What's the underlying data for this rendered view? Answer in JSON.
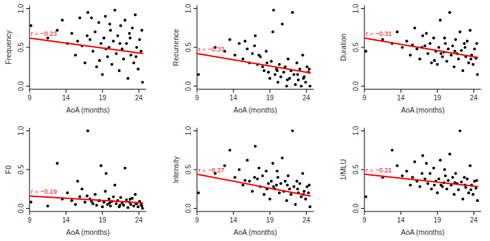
{
  "chart_data": [
    {
      "type": "scatter",
      "x_label": "AoA (months)",
      "y_label": "Frequency",
      "annotation": "r = −0.23",
      "xlim": [
        9,
        25
      ],
      "xticks": [
        9,
        14,
        19,
        24
      ],
      "ylim": [
        -0.04,
        1.04
      ],
      "yticks": [
        {
          "value": 0,
          "label": "0.0"
        },
        {
          "value": 0.5,
          "label": "0.5"
        },
        {
          "value": 1,
          "label": "1.0"
        }
      ],
      "series": [
        {
          "type": "scatter",
          "color": "#000000",
          "marker": "circle",
          "x": [
            9.2,
            11.5,
            12.8,
            13.5,
            14.2,
            14.8,
            15.3,
            15.9,
            16.2,
            16.6,
            17.0,
            17.3,
            17.7,
            18.0,
            18.2,
            18.5,
            18.8,
            19.0,
            19.2,
            19.4,
            19.7,
            19.9,
            20.1,
            20.3,
            20.5,
            20.7,
            20.9,
            21.1,
            21.3,
            21.5,
            21.7,
            21.9,
            22.1,
            22.3,
            22.5,
            22.7,
            22.9,
            23.1,
            23.3,
            23.5,
            23.7,
            23.9,
            24.1,
            24.3,
            24.5,
            16.9,
            18.6,
            20.0,
            21.4,
            22.8,
            23.6,
            24.4,
            19.5,
            17.5,
            15.6
          ],
          "values": [
            0.78,
            0.62,
            0.72,
            0.85,
            0.55,
            0.68,
            0.4,
            0.88,
            0.52,
            0.3,
            0.95,
            0.6,
            0.45,
            0.7,
            0.25,
            0.82,
            0.55,
            0.15,
            0.62,
            0.9,
            0.38,
            0.5,
            0.72,
            0.28,
            0.58,
            0.98,
            0.42,
            0.65,
            0.2,
            0.78,
            0.48,
            0.35,
            0.85,
            0.55,
            0.1,
            0.68,
            0.4,
            0.75,
            0.3,
            0.92,
            0.5,
            0.22,
            0.6,
            0.45,
            0.05,
            0.65,
            0.33,
            0.8,
            0.55,
            0.62,
            0.38,
            0.72,
            0.48,
            0.88,
            0.58
          ]
        },
        {
          "type": "line",
          "color": "#ff0000",
          "line_style": "solid",
          "x": [
            9,
            24.6
          ],
          "values": [
            0.62,
            0.42
          ]
        }
      ]
    },
    {
      "type": "scatter",
      "x_label": "AoA (months)",
      "y_label": "Recurrence",
      "annotation": "r = −0.37",
      "xlim": [
        9,
        25
      ],
      "xticks": [
        9,
        14,
        19,
        24
      ],
      "ylim": [
        -0.04,
        1.04
      ],
      "yticks": [
        {
          "value": 0,
          "label": "0.0"
        },
        {
          "value": 0.5,
          "label": "0.5"
        },
        {
          "value": 1,
          "label": "1.0"
        }
      ],
      "series": [
        {
          "type": "scatter",
          "color": "#000000",
          "marker": "circle",
          "x": [
            9.2,
            11.5,
            12.8,
            13.5,
            14.2,
            14.8,
            15.3,
            15.9,
            16.2,
            16.6,
            17.0,
            17.3,
            17.7,
            18.0,
            18.2,
            18.5,
            18.8,
            19.0,
            19.2,
            19.4,
            19.7,
            19.9,
            20.1,
            20.3,
            20.5,
            20.7,
            20.9,
            21.1,
            21.3,
            21.5,
            21.7,
            21.9,
            22.1,
            22.3,
            22.5,
            22.7,
            22.9,
            23.1,
            23.3,
            23.5,
            23.7,
            23.9,
            24.1,
            24.3,
            24.5,
            16.9,
            18.6,
            20.0,
            21.4,
            22.8,
            23.6,
            24.4,
            19.5,
            17.5,
            15.6
          ],
          "values": [
            0.15,
            0.5,
            0.45,
            0.6,
            0.4,
            0.55,
            0.35,
            0.48,
            0.3,
            0.42,
            0.65,
            0.28,
            0.38,
            0.25,
            0.2,
            0.45,
            0.18,
            0.1,
            0.32,
            0.7,
            0.15,
            0.22,
            0.05,
            0.28,
            0.12,
            0.8,
            0.18,
            0.25,
            0.0,
            0.35,
            0.1,
            0.2,
            0.95,
            0.15,
            0.02,
            0.3,
            0.08,
            0.22,
            0.0,
            0.4,
            0.12,
            0.05,
            0.25,
            0.18,
            0.0,
            0.52,
            0.3,
            0.2,
            0.08,
            0.15,
            0.1,
            0.22,
            0.98,
            0.4,
            0.58
          ]
        },
        {
          "type": "line",
          "color": "#ff0000",
          "line_style": "solid",
          "x": [
            9,
            24.6
          ],
          "values": [
            0.42,
            0.17
          ]
        }
      ]
    },
    {
      "type": "scatter",
      "x_label": "AoA (months)",
      "y_label": "Duration",
      "annotation": "r = −0.31",
      "xlim": [
        9,
        25
      ],
      "xticks": [
        9,
        14,
        19,
        24
      ],
      "ylim": [
        -0.04,
        1.04
      ],
      "yticks": [
        {
          "value": 0,
          "label": "0.0"
        },
        {
          "value": 0.5,
          "label": "0.5"
        },
        {
          "value": 1,
          "label": "1.0"
        }
      ],
      "series": [
        {
          "type": "scatter",
          "color": "#000000",
          "marker": "circle",
          "x": [
            9.2,
            11.5,
            12.8,
            13.5,
            14.2,
            14.8,
            15.3,
            15.9,
            16.2,
            16.6,
            17.0,
            17.3,
            17.7,
            18.0,
            18.2,
            18.5,
            18.8,
            19.0,
            19.2,
            19.4,
            19.7,
            19.9,
            20.1,
            20.3,
            20.5,
            20.7,
            20.9,
            21.1,
            21.3,
            21.5,
            21.7,
            21.9,
            22.1,
            22.3,
            22.5,
            22.7,
            22.9,
            23.1,
            23.3,
            23.5,
            23.7,
            23.9,
            24.1,
            24.3,
            24.5,
            16.9,
            18.6,
            20.0,
            21.4,
            22.8,
            23.6,
            24.4,
            19.5,
            17.5,
            15.6
          ],
          "values": [
            0.45,
            0.6,
            0.55,
            0.7,
            0.5,
            0.58,
            0.4,
            0.75,
            0.48,
            0.35,
            0.65,
            0.52,
            0.42,
            0.55,
            0.3,
            0.62,
            0.45,
            0.28,
            0.5,
            0.85,
            0.38,
            0.44,
            0.55,
            0.32,
            0.48,
            0.95,
            0.4,
            0.52,
            0.25,
            0.6,
            0.42,
            0.35,
            0.7,
            0.46,
            0.2,
            0.55,
            0.38,
            0.58,
            0.3,
            0.72,
            0.4,
            0.28,
            0.48,
            0.36,
            0.15,
            0.5,
            0.33,
            0.62,
            0.45,
            0.5,
            0.35,
            0.55,
            0.42,
            0.68,
            0.53
          ]
        },
        {
          "type": "line",
          "color": "#ff0000",
          "line_style": "solid",
          "x": [
            9,
            24.6
          ],
          "values": [
            0.62,
            0.37
          ]
        }
      ]
    },
    {
      "type": "scatter",
      "x_label": "AoA (months)",
      "y_label": "F0",
      "annotation": "r = −0.19",
      "xlim": [
        9,
        25
      ],
      "xticks": [
        9,
        14,
        19,
        24
      ],
      "ylim": [
        -0.04,
        1.04
      ],
      "yticks": [
        {
          "value": 0,
          "label": "0.0"
        },
        {
          "value": 0.5,
          "label": "0.5"
        },
        {
          "value": 1,
          "label": "1.0"
        }
      ],
      "series": [
        {
          "type": "scatter",
          "color": "#000000",
          "marker": "circle",
          "x": [
            9.2,
            11.5,
            12.8,
            13.5,
            14.2,
            14.8,
            15.3,
            15.9,
            16.2,
            16.6,
            17.0,
            17.3,
            17.7,
            18.0,
            18.2,
            18.5,
            18.8,
            19.0,
            19.2,
            19.4,
            19.7,
            19.9,
            20.1,
            20.3,
            20.5,
            20.7,
            20.9,
            21.1,
            21.3,
            21.5,
            21.7,
            21.9,
            22.1,
            22.3,
            22.5,
            22.7,
            22.9,
            23.1,
            23.3,
            23.5,
            23.7,
            23.9,
            24.1,
            24.3,
            24.5,
            16.9,
            18.6,
            20.0,
            21.4,
            22.8,
            23.6,
            24.4,
            19.5,
            17.5,
            15.6
          ],
          "values": [
            0.08,
            0.03,
            0.58,
            0.12,
            0.2,
            0.1,
            0.05,
            0.15,
            0.25,
            0.08,
            1.0,
            0.12,
            0.06,
            0.18,
            0.04,
            0.1,
            0.55,
            0.02,
            0.08,
            0.22,
            0.05,
            0.12,
            0.03,
            0.09,
            0.15,
            0.3,
            0.06,
            0.1,
            0.02,
            0.14,
            0.07,
            0.04,
            0.52,
            0.11,
            0.01,
            0.08,
            0.05,
            0.13,
            0.03,
            0.18,
            0.06,
            0.02,
            0.09,
            0.05,
            0.0,
            0.16,
            0.1,
            0.07,
            0.04,
            0.12,
            0.06,
            0.03,
            0.45,
            0.09,
            0.35
          ]
        },
        {
          "type": "line",
          "color": "#ff0000",
          "line_style": "solid",
          "x": [
            9,
            24.6
          ],
          "values": [
            0.16,
            0.07
          ]
        }
      ]
    },
    {
      "type": "scatter",
      "x_label": "AoA (months)",
      "y_label": "Intensity",
      "annotation": "r = −0.37",
      "xlim": [
        9,
        25
      ],
      "xticks": [
        9,
        14,
        19,
        24
      ],
      "ylim": [
        -0.04,
        1.04
      ],
      "yticks": [
        {
          "value": 0,
          "label": "0.0"
        },
        {
          "value": 0.5,
          "label": "0.5"
        },
        {
          "value": 1,
          "label": "1.0"
        }
      ],
      "series": [
        {
          "type": "scatter",
          "color": "#000000",
          "marker": "circle",
          "x": [
            9.2,
            11.5,
            12.8,
            13.5,
            14.2,
            14.8,
            15.3,
            15.9,
            16.2,
            16.6,
            17.0,
            17.3,
            17.7,
            18.0,
            18.2,
            18.5,
            18.8,
            19.0,
            19.2,
            19.4,
            19.7,
            19.9,
            20.1,
            20.3,
            20.5,
            20.7,
            20.9,
            21.1,
            21.3,
            21.5,
            21.7,
            21.9,
            22.1,
            22.3,
            22.5,
            22.7,
            22.9,
            23.1,
            23.3,
            23.5,
            23.7,
            23.9,
            24.1,
            24.3,
            24.5,
            16.9,
            18.6,
            20.0,
            21.4,
            22.8,
            23.6,
            24.4,
            19.5,
            17.5,
            15.6
          ],
          "values": [
            0.2,
            0.45,
            0.55,
            0.75,
            0.4,
            0.5,
            0.3,
            0.62,
            0.35,
            0.22,
            0.8,
            0.38,
            0.28,
            0.42,
            0.18,
            0.48,
            0.32,
            0.12,
            0.35,
            0.58,
            0.25,
            0.3,
            0.4,
            0.2,
            0.32,
            0.65,
            0.22,
            0.35,
            0.1,
            0.42,
            0.25,
            0.18,
            1.0,
            0.28,
            0.05,
            0.35,
            0.2,
            0.32,
            0.15,
            0.45,
            0.22,
            0.12,
            0.28,
            0.2,
            0.02,
            0.4,
            0.25,
            0.48,
            0.3,
            0.25,
            0.18,
            0.3,
            0.28,
            0.52,
            0.36
          ]
        },
        {
          "type": "line",
          "color": "#ff0000",
          "line_style": "solid",
          "x": [
            9,
            24.6
          ],
          "values": [
            0.44,
            0.16
          ]
        }
      ]
    },
    {
      "type": "scatter",
      "x_label": "AoA (months)",
      "y_label": "1/MLU",
      "annotation": "r = −0.21",
      "xlim": [
        9,
        25
      ],
      "xticks": [
        9,
        14,
        19,
        24
      ],
      "ylim": [
        -0.04,
        1.04
      ],
      "yticks": [
        {
          "value": 0,
          "label": "0.0"
        },
        {
          "value": 0.5,
          "label": "0.5"
        },
        {
          "value": 1,
          "label": "1.0"
        }
      ],
      "series": [
        {
          "type": "scatter",
          "color": "#000000",
          "marker": "circle",
          "x": [
            9.2,
            11.5,
            12.8,
            13.5,
            14.2,
            14.8,
            15.3,
            15.9,
            16.2,
            16.6,
            17.0,
            17.3,
            17.7,
            18.0,
            18.2,
            18.5,
            18.8,
            19.0,
            19.2,
            19.4,
            19.7,
            19.9,
            20.1,
            20.3,
            20.5,
            20.7,
            20.9,
            21.1,
            21.3,
            21.5,
            21.7,
            21.9,
            22.1,
            22.3,
            22.5,
            22.7,
            22.9,
            23.1,
            23.3,
            23.5,
            23.7,
            23.9,
            24.1,
            24.3,
            24.5,
            16.9,
            18.6,
            20.0,
            21.4,
            22.8,
            23.6,
            24.4,
            19.5,
            17.5,
            15.6
          ],
          "values": [
            0.15,
            0.4,
            0.75,
            0.55,
            0.42,
            0.48,
            0.3,
            0.6,
            0.35,
            0.28,
            0.68,
            0.38,
            0.32,
            0.45,
            0.25,
            0.52,
            0.35,
            0.2,
            0.38,
            0.62,
            0.28,
            0.33,
            0.42,
            0.25,
            0.36,
            0.7,
            0.3,
            0.4,
            0.18,
            0.45,
            0.32,
            0.24,
            1.0,
            0.34,
            0.12,
            0.4,
            0.27,
            0.38,
            0.2,
            0.55,
            0.3,
            0.18,
            0.35,
            0.26,
            0.1,
            0.45,
            0.3,
            0.5,
            0.33,
            0.3,
            0.24,
            0.36,
            0.3,
            0.58,
            0.4
          ]
        },
        {
          "type": "line",
          "color": "#ff0000",
          "line_style": "solid",
          "x": [
            9,
            24.6
          ],
          "values": [
            0.44,
            0.28
          ]
        }
      ]
    }
  ]
}
